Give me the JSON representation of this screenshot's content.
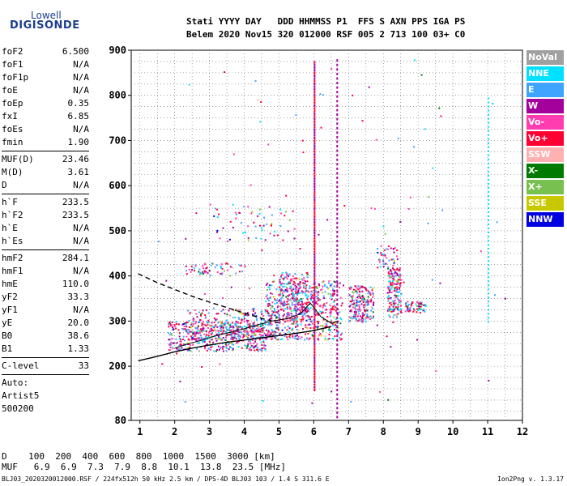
{
  "logo": {
    "top": "Lowell",
    "bottom": "DIGISONDE"
  },
  "header": {
    "line1": "Stati YYYY DAY   DDD HHMMSS P1  FFS S AXN PPS IGA PS",
    "line2": "Belem 2020 Nov15 320 012000 RSF 005 2 713 100 03+ C0"
  },
  "params": [
    {
      "k": "foF2",
      "v": "6.500"
    },
    {
      "k": "foF1",
      "v": "N/A"
    },
    {
      "k": "foF1p",
      "v": "N/A"
    },
    {
      "k": "foE",
      "v": "N/A"
    },
    {
      "k": "foEp",
      "v": "0.35"
    },
    {
      "k": "fxI",
      "v": "6.85"
    },
    {
      "k": "foEs",
      "v": "N/A"
    },
    {
      "k": "fmin",
      "v": "1.90"
    },
    {
      "sep": true
    },
    {
      "k": "MUF(D)",
      "v": "23.46"
    },
    {
      "k": "M(D)",
      "v": "3.61"
    },
    {
      "k": "D",
      "v": "N/A"
    },
    {
      "sep": true
    },
    {
      "k": "h`F",
      "v": "233.5"
    },
    {
      "k": "h`F2",
      "v": "233.5"
    },
    {
      "k": "h`E",
      "v": "N/A"
    },
    {
      "k": "h`Es",
      "v": "N/A"
    },
    {
      "sep": true
    },
    {
      "k": "hmF2",
      "v": "284.1"
    },
    {
      "k": "hmF1",
      "v": "N/A"
    },
    {
      "k": "hmE",
      "v": "110.0"
    },
    {
      "k": "yF2",
      "v": "33.3"
    },
    {
      "k": "yF1",
      "v": "N/A"
    },
    {
      "k": "yE",
      "v": "20.0"
    },
    {
      "k": "B0",
      "v": "38.6"
    },
    {
      "k": "B1",
      "v": "1.33"
    },
    {
      "sep": true
    },
    {
      "k": "C-level",
      "v": "33"
    },
    {
      "sep": true
    },
    {
      "t": "Auto:"
    },
    {
      "t": "Artist5"
    },
    {
      "t": "500200"
    }
  ],
  "legend": [
    {
      "label": "NoVal",
      "color": "#a0a0a0"
    },
    {
      "label": "NNE",
      "color": "#00e0ff"
    },
    {
      "label": "E",
      "color": "#3fa4ff"
    },
    {
      "label": "W",
      "color": "#a4009c"
    },
    {
      "label": "Vo-",
      "color": "#ff3cb0"
    },
    {
      "label": "Vo+",
      "color": "#ff0033"
    },
    {
      "label": "SSW",
      "color": "#ffb0b0"
    },
    {
      "label": "X-",
      "color": "#007a00"
    },
    {
      "label": "X+",
      "color": "#78c050"
    },
    {
      "label": "SSE",
      "color": "#c8c800"
    },
    {
      "label": "NNW",
      "color": "#0000e0"
    }
  ],
  "chart_data": {
    "type": "scatter",
    "xlim": [
      0.75,
      12
    ],
    "ylim": [
      80,
      900
    ],
    "xticks": [
      1,
      2,
      3,
      4,
      5,
      6,
      7,
      8,
      9,
      10,
      11,
      12
    ],
    "yticks": [
      80,
      200,
      300,
      400,
      500,
      600,
      700,
      800,
      900
    ],
    "grid": true,
    "dashed_profile": {
      "x": [
        0.95,
        1.5,
        2.0,
        2.5,
        3.0,
        3.5,
        4.0,
        4.5,
        5.0
      ],
      "y": [
        405,
        385,
        370,
        355,
        342,
        330,
        318,
        306,
        296
      ]
    },
    "solid_profile": {
      "x": [
        0.95,
        1.5,
        2.0,
        2.5,
        3.0,
        3.5,
        4.0,
        4.5,
        5.0,
        5.5,
        6.0,
        6.5
      ],
      "y": [
        212,
        222,
        232,
        240,
        247,
        253,
        258,
        263,
        268,
        273,
        279,
        288
      ]
    },
    "trace": {
      "x": [
        2.0,
        2.4,
        2.8,
        3.2,
        3.6,
        4.0,
        4.4,
        4.8,
        5.2,
        5.6,
        5.9,
        6.2,
        6.5,
        6.7
      ],
      "y": [
        240,
        250,
        258,
        268,
        275,
        283,
        292,
        300,
        305,
        315,
        340,
        310,
        295,
        300
      ]
    },
    "bottom_table": {
      "d_label": "D",
      "muf_label": "MUF",
      "d_values": [
        "100",
        "200",
        "400",
        "600",
        "800",
        "1000",
        "1500",
        "3000"
      ],
      "d_unit": "[km]",
      "muf_values": [
        "6.9",
        "6.9",
        "7.3",
        "7.9",
        "8.8",
        "10.1",
        "13.8",
        "23.5"
      ],
      "muf_unit": "[MHz]"
    }
  },
  "footer": "BLJ03_2020320012000.RSF / 224fx512h 50 kHz 2.5 km / DPS-4D BLJ03 103 / 1.4 S 311.6 E",
  "version": "Ion2Png v. 1.3.17"
}
